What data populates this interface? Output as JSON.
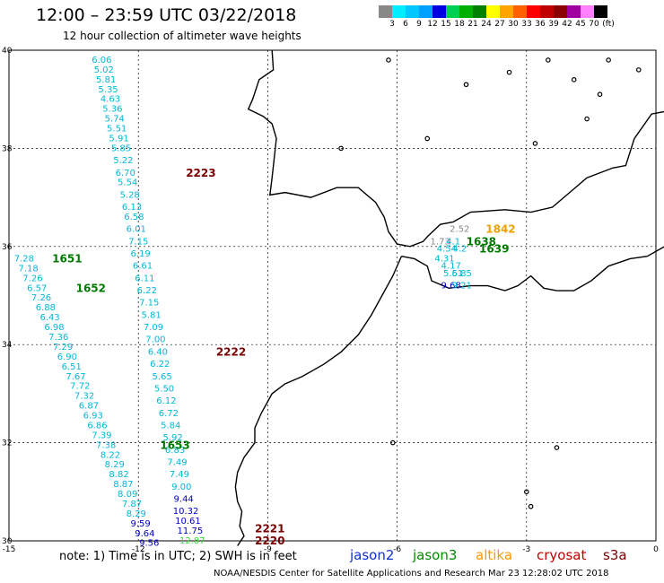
{
  "header": {
    "title": "12:00 – 23:59 UTC 03/22/2018",
    "subtitle": "12 hour collection of altimeter wave heights"
  },
  "legend_scale": {
    "labels": [
      "3",
      "6",
      "9",
      "12",
      "15",
      "18",
      "21",
      "24",
      "27",
      "30",
      "33",
      "36",
      "39",
      "42",
      "45",
      "70"
    ],
    "unit": "(ft)",
    "colors": [
      "#888888",
      "#00eeff",
      "#00c8ff",
      "#00a0ff",
      "#0000e0",
      "#00d050",
      "#00b000",
      "#008000",
      "#ffff00",
      "#ffa500",
      "#ff6000",
      "#ff0000",
      "#c00000",
      "#8b0000",
      "#a000a0",
      "#ff80ff",
      "#000000"
    ]
  },
  "axes": {
    "x_ticks": [
      "-15",
      "-12",
      "-9",
      "-6",
      "-3",
      "0"
    ],
    "y_ticks": [
      "40",
      "38",
      "36",
      "34",
      "32",
      "30"
    ]
  },
  "chart_data": {
    "type": "map",
    "extent": {
      "lon": [
        -15,
        0
      ],
      "lat": [
        30,
        40
      ]
    },
    "grid": true,
    "tracks": [
      {
        "satellite": "cryosat",
        "time": "2223",
        "label_color": "#7a0000",
        "points": [
          {
            "lon": -12.85,
            "lat": 39.8,
            "v": "6.06",
            "c": "#00b8d8"
          },
          {
            "lon": -12.8,
            "lat": 39.6,
            "v": "5.02",
            "c": "#00b8d8"
          },
          {
            "lon": -12.75,
            "lat": 39.4,
            "v": "5.81",
            "c": "#00b8d8"
          },
          {
            "lon": -12.7,
            "lat": 39.2,
            "v": "5.35",
            "c": "#00b8d8"
          },
          {
            "lon": -12.65,
            "lat": 39.0,
            "v": "4.63",
            "c": "#00b8d8"
          },
          {
            "lon": -12.6,
            "lat": 38.8,
            "v": "5.36",
            "c": "#00b8d8"
          },
          {
            "lon": -12.55,
            "lat": 38.6,
            "v": "5.74",
            "c": "#00b8d8"
          },
          {
            "lon": -12.5,
            "lat": 38.4,
            "v": "5.51",
            "c": "#00b8d8"
          },
          {
            "lon": -12.45,
            "lat": 38.2,
            "v": "5.91",
            "c": "#00b8d8"
          },
          {
            "lon": -12.4,
            "lat": 38.0,
            "v": "5.85",
            "c": "#00b8d8"
          },
          {
            "lon": -12.35,
            "lat": 37.75,
            "v": "5.22",
            "c": "#00b8d8"
          },
          {
            "lon": -12.3,
            "lat": 37.5,
            "v": "6.70",
            "c": "#00b8d8"
          },
          {
            "lon": -12.25,
            "lat": 37.3,
            "v": "5.54",
            "c": "#00b8d8"
          },
          {
            "lon": -12.2,
            "lat": 37.05,
            "v": "5.28",
            "c": "#00b8d8"
          },
          {
            "lon": -12.15,
            "lat": 36.8,
            "v": "6.13",
            "c": "#00b8d8"
          },
          {
            "lon": -12.1,
            "lat": 36.6,
            "v": "6.58",
            "c": "#00b8d8"
          },
          {
            "lon": -12.05,
            "lat": 36.35,
            "v": "6.01",
            "c": "#00b8d8"
          },
          {
            "lon": -12.0,
            "lat": 36.1,
            "v": "7.15",
            "c": "#00b8d8"
          },
          {
            "lon": -11.95,
            "lat": 35.85,
            "v": "6.19",
            "c": "#00b8d8"
          },
          {
            "lon": -11.9,
            "lat": 35.6,
            "v": "6.61",
            "c": "#00b8d8"
          },
          {
            "lon": -11.85,
            "lat": 35.35,
            "v": "6.11",
            "c": "#00b8d8"
          },
          {
            "lon": -11.8,
            "lat": 35.1,
            "v": "6.22",
            "c": "#00b8d8"
          },
          {
            "lon": -11.75,
            "lat": 34.85,
            "v": "7.15",
            "c": "#00b8d8"
          },
          {
            "lon": -11.7,
            "lat": 34.6,
            "v": "5.81",
            "c": "#00b8d8"
          },
          {
            "lon": -11.65,
            "lat": 34.35,
            "v": "7.09",
            "c": "#00b8d8"
          },
          {
            "lon": -11.6,
            "lat": 34.1,
            "v": "7.00",
            "c": "#00b8d8"
          }
        ]
      },
      {
        "satellite": "cryosat",
        "time": "2222",
        "label_color": "#7a0000",
        "points": [
          {
            "lon": -11.55,
            "lat": 33.85,
            "v": "6.40",
            "c": "#00b8d8"
          },
          {
            "lon": -11.5,
            "lat": 33.6,
            "v": "6.22",
            "c": "#00b8d8"
          },
          {
            "lon": -11.45,
            "lat": 33.35,
            "v": "5.65",
            "c": "#00b8d8"
          },
          {
            "lon": -11.4,
            "lat": 33.1,
            "v": "5.50",
            "c": "#00b8d8"
          },
          {
            "lon": -11.35,
            "lat": 32.85,
            "v": "6.12",
            "c": "#00b8d8"
          },
          {
            "lon": -11.3,
            "lat": 32.6,
            "v": "6.72",
            "c": "#00b8d8"
          },
          {
            "lon": -11.25,
            "lat": 32.35,
            "v": "5.84",
            "c": "#00b8d8"
          },
          {
            "lon": -11.2,
            "lat": 32.1,
            "v": "5.92",
            "c": "#00b8d8"
          },
          {
            "lon": -11.15,
            "lat": 31.85,
            "v": "6.83",
            "c": "#00b8d8"
          },
          {
            "lon": -11.1,
            "lat": 31.6,
            "v": "7.49",
            "c": "#00b8d8"
          },
          {
            "lon": -11.05,
            "lat": 31.35,
            "v": "7.49",
            "c": "#00b8d8"
          },
          {
            "lon": -11.0,
            "lat": 31.1,
            "v": "9.00",
            "c": "#00b8d8"
          },
          {
            "lon": -10.95,
            "lat": 30.85,
            "v": "9.44",
            "c": "#0000c0"
          }
        ]
      },
      {
        "satellite": "cryosat",
        "time": "2221",
        "label_color": "#7a0000",
        "points": [
          {
            "lon": -10.9,
            "lat": 30.6,
            "v": "10.32",
            "c": "#0000c0"
          },
          {
            "lon": -10.85,
            "lat": 30.4,
            "v": "10.61",
            "c": "#0000c0"
          },
          {
            "lon": -10.8,
            "lat": 30.2,
            "v": "11.75",
            "c": "#0000c0"
          }
        ]
      },
      {
        "satellite": "cryosat",
        "time": "2220",
        "label_color": "#7a0000",
        "points": [
          {
            "lon": -10.75,
            "lat": 30.0,
            "v": "12.87",
            "c": "#33dd33"
          }
        ]
      },
      {
        "satellite": "jason3",
        "time": "1651",
        "label_color": "#007a00",
        "points": [
          {
            "lon": -14.65,
            "lat": 35.75,
            "v": "7.28",
            "c": "#00b8d8"
          },
          {
            "lon": -14.55,
            "lat": 35.55,
            "v": "7.18",
            "c": "#00b8d8"
          },
          {
            "lon": -14.45,
            "lat": 35.35,
            "v": "7.26",
            "c": "#00b8d8"
          }
        ]
      },
      {
        "satellite": "jason3",
        "time": "1652",
        "label_color": "#007a00",
        "points": [
          {
            "lon": -14.35,
            "lat": 35.15,
            "v": "6.57",
            "c": "#00b8d8"
          },
          {
            "lon": -14.25,
            "lat": 34.95,
            "v": "7.26",
            "c": "#00b8d8"
          },
          {
            "lon": -14.15,
            "lat": 34.75,
            "v": "6.88",
            "c": "#00b8d8"
          },
          {
            "lon": -14.05,
            "lat": 34.55,
            "v": "6.43",
            "c": "#00b8d8"
          },
          {
            "lon": -13.95,
            "lat": 34.35,
            "v": "6.98",
            "c": "#00b8d8"
          },
          {
            "lon": -13.85,
            "lat": 34.15,
            "v": "7.36",
            "c": "#00b8d8"
          },
          {
            "lon": -13.75,
            "lat": 33.95,
            "v": "7.29",
            "c": "#00b8d8"
          },
          {
            "lon": -13.65,
            "lat": 33.75,
            "v": "6.90",
            "c": "#00b8d8"
          },
          {
            "lon": -13.55,
            "lat": 33.55,
            "v": "6.51",
            "c": "#00b8d8"
          },
          {
            "lon": -13.45,
            "lat": 33.35,
            "v": "7.67",
            "c": "#00b8d8"
          },
          {
            "lon": -13.35,
            "lat": 33.15,
            "v": "7.72",
            "c": "#00b8d8"
          },
          {
            "lon": -13.25,
            "lat": 32.95,
            "v": "7.32",
            "c": "#00b8d8"
          },
          {
            "lon": -13.15,
            "lat": 32.75,
            "v": "6.87",
            "c": "#00b8d8"
          },
          {
            "lon": -13.05,
            "lat": 32.55,
            "v": "6.93",
            "c": "#00b8d8"
          },
          {
            "lon": -12.95,
            "lat": 32.35,
            "v": "6.86",
            "c": "#00b8d8"
          },
          {
            "lon": -12.85,
            "lat": 32.15,
            "v": "7.39",
            "c": "#00b8d8"
          }
        ]
      },
      {
        "satellite": "jason3",
        "time": "1653",
        "label_color": "#007a00",
        "points": [
          {
            "lon": -12.75,
            "lat": 31.95,
            "v": "7.38",
            "c": "#00b8d8"
          },
          {
            "lon": -12.65,
            "lat": 31.75,
            "v": "8.22",
            "c": "#00b8d8"
          },
          {
            "lon": -12.55,
            "lat": 31.55,
            "v": "8.29",
            "c": "#00b8d8"
          },
          {
            "lon": -12.45,
            "lat": 31.35,
            "v": "8.82",
            "c": "#00b8d8"
          },
          {
            "lon": -12.35,
            "lat": 31.15,
            "v": "8.87",
            "c": "#00b8d8"
          },
          {
            "lon": -12.25,
            "lat": 30.95,
            "v": "8.09",
            "c": "#00b8d8"
          },
          {
            "lon": -12.15,
            "lat": 30.75,
            "v": "7.87",
            "c": "#00b8d8"
          },
          {
            "lon": -12.05,
            "lat": 30.55,
            "v": "8.29",
            "c": "#00b8d8"
          },
          {
            "lon": -11.95,
            "lat": 30.35,
            "v": "9.59",
            "c": "#0000c0"
          },
          {
            "lon": -11.85,
            "lat": 30.15,
            "v": "9.64",
            "c": "#0000c0"
          },
          {
            "lon": -11.75,
            "lat": 29.95,
            "v": "9.56",
            "c": "#0000c0"
          }
        ]
      },
      {
        "satellite": "altika",
        "time": "1842",
        "label_color": "#f0a000",
        "points": [
          {
            "lon": -4.55,
            "lat": 36.35,
            "v": "2.52",
            "c": "#888888"
          }
        ]
      },
      {
        "satellite": "jason3",
        "time": "1638",
        "label_color": "#007a00",
        "points": [
          {
            "lon": -5.0,
            "lat": 36.1,
            "v": "1.73",
            "c": "#888888"
          },
          {
            "lon": -4.7,
            "lat": 36.1,
            "v": "4.1",
            "c": "#00b8d8"
          },
          {
            "lon": -4.85,
            "lat": 35.95,
            "v": "4.54",
            "c": "#00b8d8"
          },
          {
            "lon": -4.55,
            "lat": 35.95,
            "v": "4.2",
            "c": "#00b8d8"
          }
        ]
      },
      {
        "satellite": "jason3",
        "time": "1639",
        "label_color": "#007a00",
        "points": [
          {
            "lon": -4.9,
            "lat": 35.75,
            "v": "4.31",
            "c": "#00b8d8"
          },
          {
            "lon": -4.75,
            "lat": 35.6,
            "v": "4.17",
            "c": "#00b8d8"
          },
          {
            "lon": -4.7,
            "lat": 35.45,
            "v": "5.61",
            "c": "#00b8d8"
          },
          {
            "lon": -4.5,
            "lat": 35.45,
            "v": "5.85",
            "c": "#00b8d8"
          },
          {
            "lon": -4.75,
            "lat": 35.2,
            "v": "9.68",
            "c": "#0000c0"
          },
          {
            "lon": -4.5,
            "lat": 35.2,
            "v": "9.21",
            "c": "#00b8d8"
          }
        ]
      }
    ],
    "time_labels": [
      {
        "text": "2223",
        "lon": -10.55,
        "lat": 37.5,
        "color": "#7a0000"
      },
      {
        "text": "2222",
        "lon": -9.85,
        "lat": 33.85,
        "color": "#7a0000"
      },
      {
        "text": "2221",
        "lon": -8.95,
        "lat": 30.25,
        "color": "#7a0000"
      },
      {
        "text": "2220",
        "lon": -8.95,
        "lat": 30.0,
        "color": "#7a0000"
      },
      {
        "text": "1651",
        "lon": -13.65,
        "lat": 35.75,
        "color": "#007a00"
      },
      {
        "text": "1652",
        "lon": -13.1,
        "lat": 35.15,
        "color": "#007a00"
      },
      {
        "text": "1653",
        "lon": -11.15,
        "lat": 31.95,
        "color": "#007a00"
      },
      {
        "text": "1842",
        "lon": -3.6,
        "lat": 36.35,
        "color": "#f0a000"
      },
      {
        "text": "1638",
        "lon": -4.05,
        "lat": 36.1,
        "color": "#007a00"
      },
      {
        "text": "1639",
        "lon": -3.75,
        "lat": 35.95,
        "color": "#007a00"
      }
    ]
  },
  "footer": {
    "note": "note:  1) Time is in UTC;  2) SWH is in feet",
    "satellites": [
      {
        "label": "jason2",
        "color": "#1030d0"
      },
      {
        "label": "jason3",
        "color": "#008a00"
      },
      {
        "label": "altika",
        "color": "#ff9a00"
      },
      {
        "label": "cryosat",
        "color": "#c00000"
      },
      {
        "label": "s3a",
        "color": "#7a0000"
      }
    ],
    "credit": "NOAA/NESDIS Center for Satellite Applications and Research      Mar 23 12:28:02 UTC 2018"
  }
}
